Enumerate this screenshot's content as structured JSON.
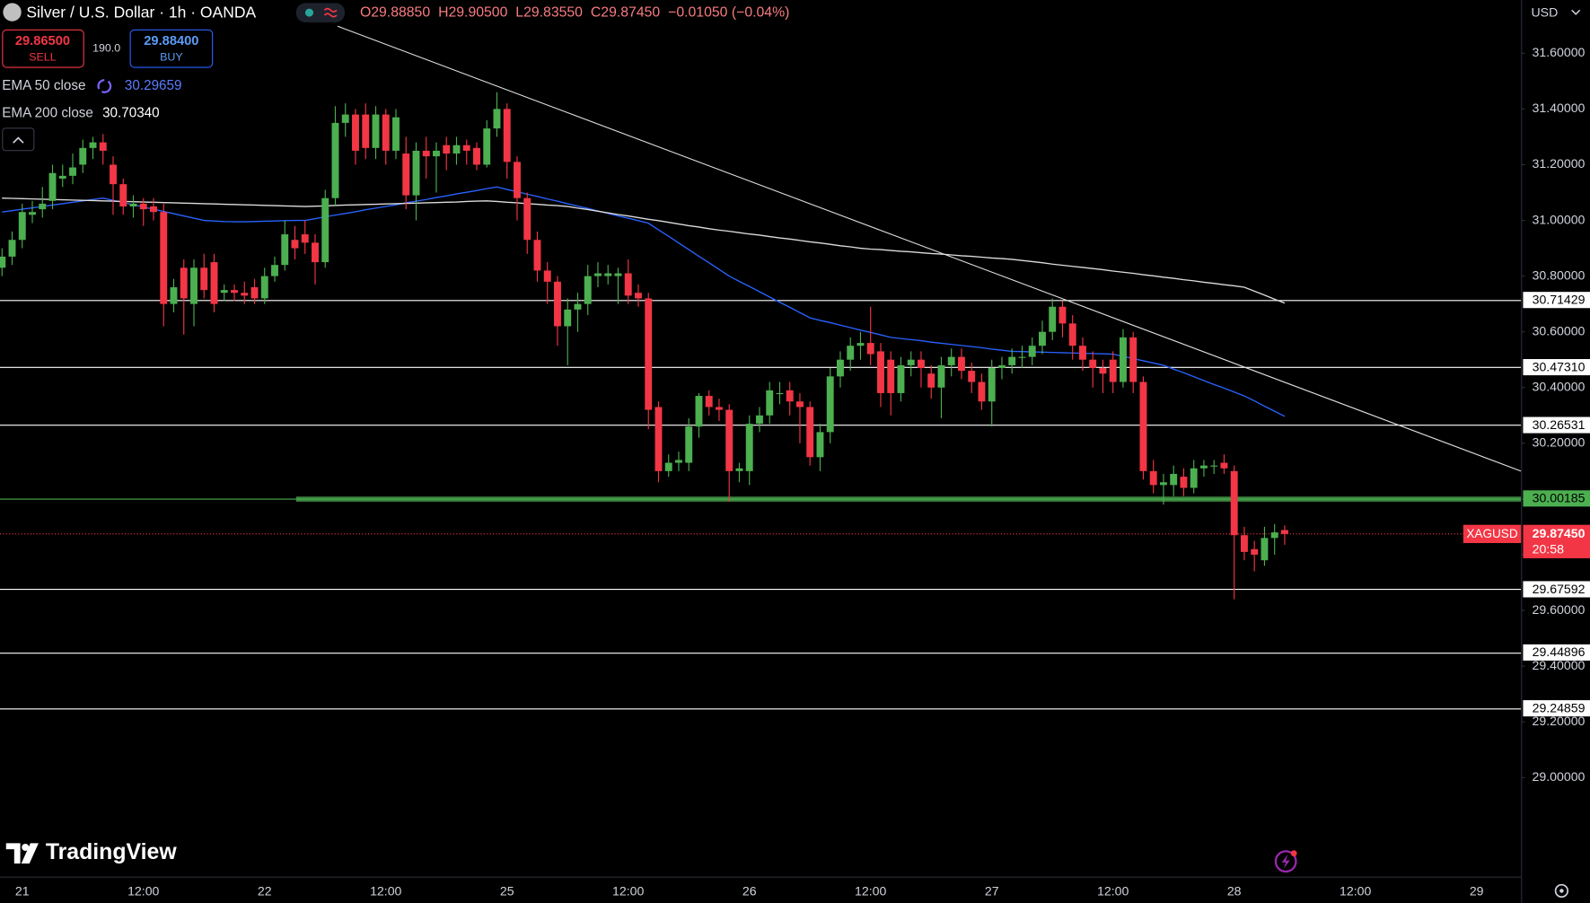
{
  "header": {
    "title": "Silver / U.S. Dollar · 1h · OANDA",
    "readout": [
      "O29.88850",
      "H29.90500",
      "L29.83550",
      "C29.87450",
      "−0.01050 (−0.04%)"
    ],
    "sell_price": "29.86500",
    "sell_label": "SELL",
    "spread": "190.0",
    "buy_price": "29.88400",
    "buy_label": "BUY",
    "ema50_value": "30.29659",
    "ema200_value": "30.70340",
    "currency": "USD",
    "logo": "TradingView"
  },
  "chart_data": {
    "type": "candlestick",
    "title": "Silver / U.S. Dollar · 1h · OANDA",
    "up_color": "#4caf50",
    "down_color": "#f23645",
    "categories": [
      null,
      null,
      "21",
      null,
      null,
      null,
      null,
      null,
      null,
      null,
      null,
      null,
      null,
      null,
      "12:00",
      null,
      null,
      null,
      null,
      null,
      null,
      null,
      null,
      null,
      null,
      null,
      "22",
      null,
      null,
      null,
      null,
      null,
      null,
      null,
      null,
      null,
      null,
      null,
      "12:00",
      null,
      null,
      null,
      null,
      null,
      null,
      null,
      null,
      null,
      null,
      null,
      "25",
      null,
      null,
      null,
      null,
      null,
      null,
      null,
      null,
      null,
      null,
      null,
      "12:00",
      null,
      null,
      null,
      null,
      null,
      null,
      null,
      null,
      null,
      null,
      null,
      "26",
      null,
      null,
      null,
      null,
      null,
      null,
      null,
      null,
      null,
      null,
      null,
      "12:00",
      null,
      null,
      null,
      null,
      null,
      null,
      null,
      null,
      null,
      null,
      null,
      "27",
      null,
      null,
      null,
      null,
      null,
      null,
      null,
      null,
      null,
      null,
      null,
      "12:00",
      null,
      null,
      null,
      null,
      null,
      null,
      null,
      null,
      null,
      null,
      null,
      "28",
      null,
      null,
      null,
      null,
      null,
      null,
      null,
      null,
      null,
      null,
      null,
      "12:00",
      null,
      null,
      null,
      null,
      null,
      null,
      null,
      null,
      null,
      null,
      null,
      "29",
      null,
      null,
      null
    ],
    "ohlc": [
      [
        30.83,
        30.9,
        30.8,
        30.87
      ],
      [
        30.87,
        30.96,
        30.84,
        30.93
      ],
      [
        30.93,
        31.06,
        30.9,
        31.03
      ],
      [
        31.02,
        31.07,
        30.99,
        31.03
      ],
      [
        31.04,
        31.12,
        31.01,
        31.06
      ],
      [
        31.07,
        31.2,
        31.04,
        31.17
      ],
      [
        31.15,
        31.2,
        31.12,
        31.16
      ],
      [
        31.16,
        31.24,
        31.13,
        31.19
      ],
      [
        31.2,
        31.29,
        31.17,
        31.26
      ],
      [
        31.26,
        31.3,
        31.22,
        31.28
      ],
      [
        31.28,
        31.31,
        31.2,
        31.25
      ],
      [
        31.2,
        31.23,
        31.02,
        31.13
      ],
      [
        31.13,
        31.15,
        31.02,
        31.05
      ],
      [
        31.05,
        31.09,
        31.01,
        31.06
      ],
      [
        31.06,
        31.08,
        30.98,
        31.04
      ],
      [
        31.05,
        31.08,
        31.0,
        31.03
      ],
      [
        31.03,
        31.06,
        30.62,
        30.7
      ],
      [
        30.7,
        30.79,
        30.67,
        30.76
      ],
      [
        30.83,
        30.86,
        30.59,
        30.72
      ],
      [
        30.7,
        30.86,
        30.62,
        30.83
      ],
      [
        30.83,
        30.88,
        30.72,
        30.75
      ],
      [
        30.85,
        30.88,
        30.67,
        30.7
      ],
      [
        30.74,
        30.77,
        30.71,
        30.75
      ],
      [
        30.75,
        30.77,
        30.71,
        30.74
      ],
      [
        30.74,
        30.78,
        30.7,
        30.73
      ],
      [
        30.76,
        30.79,
        30.7,
        30.72
      ],
      [
        30.72,
        30.83,
        30.7,
        30.8
      ],
      [
        30.8,
        30.87,
        30.78,
        30.84
      ],
      [
        30.84,
        31.0,
        30.82,
        30.95
      ],
      [
        30.93,
        30.98,
        30.86,
        30.9
      ],
      [
        30.95,
        31.0,
        30.88,
        30.92
      ],
      [
        30.92,
        30.95,
        30.77,
        30.85
      ],
      [
        30.85,
        31.11,
        30.83,
        31.08
      ],
      [
        31.08,
        31.41,
        31.05,
        31.35
      ],
      [
        31.35,
        31.42,
        31.3,
        31.38
      ],
      [
        31.38,
        31.4,
        31.2,
        31.25
      ],
      [
        31.38,
        31.42,
        31.22,
        31.26
      ],
      [
        31.26,
        31.41,
        31.22,
        31.38
      ],
      [
        31.38,
        31.4,
        31.2,
        31.25
      ],
      [
        31.25,
        31.4,
        31.22,
        31.37
      ],
      [
        31.24,
        31.3,
        31.04,
        31.09
      ],
      [
        31.09,
        31.28,
        31.0,
        31.25
      ],
      [
        31.25,
        31.3,
        31.15,
        31.23
      ],
      [
        31.23,
        31.28,
        31.1,
        31.25
      ],
      [
        31.27,
        31.3,
        31.18,
        31.24
      ],
      [
        31.24,
        31.3,
        31.2,
        31.27
      ],
      [
        31.27,
        31.29,
        31.2,
        31.25
      ],
      [
        31.26,
        31.28,
        31.18,
        31.2
      ],
      [
        31.2,
        31.36,
        31.19,
        31.33
      ],
      [
        31.33,
        31.46,
        31.3,
        31.4
      ],
      [
        31.4,
        31.42,
        31.15,
        31.21
      ],
      [
        31.21,
        31.23,
        31.0,
        31.08
      ],
      [
        31.08,
        31.1,
        30.88,
        30.93
      ],
      [
        30.93,
        30.96,
        30.78,
        30.82
      ],
      [
        30.82,
        30.85,
        30.7,
        30.78
      ],
      [
        30.78,
        30.8,
        30.55,
        30.62
      ],
      [
        30.62,
        30.72,
        30.48,
        30.68
      ],
      [
        30.68,
        30.74,
        30.6,
        30.7
      ],
      [
        30.7,
        30.84,
        30.66,
        30.8
      ],
      [
        30.8,
        30.85,
        30.76,
        30.81
      ],
      [
        30.8,
        30.84,
        30.77,
        30.81
      ],
      [
        30.8,
        30.83,
        30.7,
        30.81
      ],
      [
        30.81,
        30.86,
        30.7,
        30.73
      ],
      [
        30.74,
        30.77,
        30.69,
        30.72
      ],
      [
        30.72,
        30.74,
        30.25,
        30.32
      ],
      [
        30.33,
        30.35,
        30.06,
        30.1
      ],
      [
        30.1,
        30.16,
        30.08,
        30.13
      ],
      [
        30.13,
        30.17,
        30.1,
        30.14
      ],
      [
        30.13,
        30.29,
        30.1,
        30.26
      ],
      [
        30.26,
        30.38,
        30.22,
        30.37
      ],
      [
        30.37,
        30.39,
        30.3,
        30.33
      ],
      [
        30.33,
        30.36,
        30.28,
        30.32
      ],
      [
        30.32,
        30.34,
        29.99,
        30.1
      ],
      [
        30.1,
        30.13,
        30.06,
        30.11
      ],
      [
        30.1,
        30.3,
        30.05,
        30.27
      ],
      [
        30.27,
        30.33,
        30.24,
        30.3
      ],
      [
        30.3,
        30.42,
        30.27,
        30.39
      ],
      [
        30.38,
        30.42,
        30.34,
        30.38
      ],
      [
        30.39,
        30.42,
        30.3,
        30.35
      ],
      [
        30.35,
        30.38,
        30.2,
        30.33
      ],
      [
        30.33,
        30.35,
        30.12,
        30.15
      ],
      [
        30.15,
        30.27,
        30.1,
        30.24
      ],
      [
        30.24,
        30.47,
        30.2,
        30.44
      ],
      [
        30.44,
        30.53,
        30.4,
        30.5
      ],
      [
        30.5,
        30.58,
        30.46,
        30.55
      ],
      [
        30.55,
        30.6,
        30.5,
        30.56
      ],
      [
        30.56,
        30.69,
        30.48,
        30.52
      ],
      [
        30.53,
        30.56,
        30.33,
        30.38
      ],
      [
        30.5,
        30.53,
        30.3,
        30.38
      ],
      [
        30.38,
        30.51,
        30.35,
        30.48
      ],
      [
        30.48,
        30.53,
        30.44,
        30.5
      ],
      [
        30.5,
        30.53,
        30.4,
        30.47
      ],
      [
        30.45,
        30.48,
        30.36,
        30.4
      ],
      [
        30.4,
        30.51,
        30.29,
        30.48
      ],
      [
        30.48,
        30.54,
        30.44,
        30.51
      ],
      [
        30.51,
        30.54,
        30.43,
        30.46
      ],
      [
        30.46,
        30.49,
        30.38,
        30.42
      ],
      [
        30.42,
        30.45,
        30.32,
        30.35
      ],
      [
        30.35,
        30.5,
        30.26,
        30.47
      ],
      [
        30.47,
        30.51,
        30.43,
        30.48
      ],
      [
        30.48,
        30.54,
        30.45,
        30.51
      ],
      [
        30.51,
        30.55,
        30.47,
        30.51
      ],
      [
        30.51,
        30.58,
        30.48,
        30.55
      ],
      [
        30.55,
        30.64,
        30.52,
        30.6
      ],
      [
        30.6,
        30.72,
        30.57,
        30.69
      ],
      [
        30.69,
        30.71,
        30.58,
        30.63
      ],
      [
        30.63,
        30.66,
        30.5,
        30.55
      ],
      [
        30.55,
        30.58,
        30.46,
        30.5
      ],
      [
        30.5,
        30.53,
        30.4,
        30.47
      ],
      [
        30.47,
        30.5,
        30.38,
        30.45
      ],
      [
        30.5,
        30.53,
        30.38,
        30.42
      ],
      [
        30.42,
        30.61,
        30.4,
        30.58
      ],
      [
        30.58,
        30.6,
        30.38,
        30.42
      ],
      [
        30.42,
        30.44,
        30.07,
        30.1
      ],
      [
        30.1,
        30.14,
        30.02,
        30.05
      ],
      [
        30.05,
        30.09,
        29.98,
        30.06
      ],
      [
        30.05,
        30.12,
        30.01,
        30.09
      ],
      [
        30.08,
        30.11,
        30.01,
        30.04
      ],
      [
        30.04,
        30.14,
        30.02,
        30.11
      ],
      [
        30.11,
        30.14,
        30.08,
        30.12
      ],
      [
        30.12,
        30.14,
        30.09,
        30.12
      ],
      [
        30.13,
        30.16,
        30.09,
        30.11
      ],
      [
        30.1,
        30.12,
        29.64,
        29.87
      ],
      [
        29.87,
        29.9,
        29.78,
        29.81
      ],
      [
        29.82,
        29.85,
        29.74,
        29.8
      ],
      [
        29.78,
        29.9,
        29.76,
        29.86
      ],
      [
        29.86,
        29.91,
        29.8,
        29.88
      ],
      [
        29.8885,
        29.905,
        29.8355,
        29.8745
      ],
      null,
      null,
      null,
      null,
      null,
      null,
      null,
      null,
      null,
      null,
      null,
      null,
      null,
      null,
      null,
      null,
      null,
      null,
      null,
      null,
      null,
      null
    ],
    "series": [
      {
        "name": "EMA 50 close",
        "color": "#2962ff",
        "values": [
          31.03,
          31.035,
          31.04,
          31.045,
          31.05,
          31.055,
          31.06,
          31.065,
          31.07,
          31.075,
          31.08,
          31.072,
          31.064,
          31.056,
          31.048,
          31.04,
          31.032,
          31.024,
          31.016,
          31.008,
          31.0,
          30.998,
          30.996,
          30.995,
          30.995,
          30.996,
          30.997,
          30.998,
          30.999,
          31.0,
          31.0,
          31.006,
          31.013,
          31.019,
          31.025,
          31.031,
          31.038,
          31.044,
          31.05,
          31.056,
          31.063,
          31.069,
          31.075,
          31.082,
          31.088,
          31.095,
          31.101,
          31.107,
          31.114,
          31.12,
          31.111,
          31.103,
          31.094,
          31.086,
          31.077,
          31.069,
          31.06,
          31.051,
          31.043,
          31.034,
          31.025,
          31.016,
          31.008,
          30.999,
          30.99,
          30.966,
          30.943,
          30.919,
          30.895,
          30.871,
          30.848,
          30.824,
          30.8,
          30.781,
          30.763,
          30.744,
          30.725,
          30.706,
          30.688,
          30.669,
          30.65,
          30.641,
          30.633,
          30.624,
          30.615,
          30.606,
          30.598,
          30.589,
          30.58,
          30.576,
          30.572,
          30.568,
          30.563,
          30.559,
          30.555,
          30.551,
          30.547,
          30.543,
          30.538,
          30.534,
          30.53,
          30.529,
          30.528,
          30.527,
          30.526,
          30.525,
          30.524,
          30.523,
          30.522,
          30.521,
          30.52,
          30.512,
          30.504,
          30.496,
          30.488,
          30.48,
          30.466,
          30.453,
          30.439,
          30.425,
          30.411,
          30.398,
          30.384,
          30.37,
          30.352,
          30.333,
          30.315,
          30.29659,
          null,
          null,
          null,
          null,
          null,
          null,
          null,
          null,
          null,
          null,
          null,
          null,
          null,
          null,
          null,
          null,
          null,
          null,
          null,
          null,
          null,
          null
        ]
      },
      {
        "name": "EMA 200 close",
        "color": "#dcdcdc",
        "values": [
          31.08,
          31.079,
          31.078,
          31.077,
          31.076,
          31.075,
          31.074,
          31.073,
          31.072,
          31.071,
          31.07,
          31.069,
          31.068,
          31.067,
          31.066,
          31.065,
          31.064,
          31.063,
          31.062,
          31.061,
          31.06,
          31.059,
          31.058,
          31.057,
          31.056,
          31.055,
          31.054,
          31.053,
          31.052,
          31.051,
          31.05,
          31.051,
          31.052,
          31.054,
          31.055,
          31.056,
          31.057,
          31.058,
          31.059,
          31.06,
          31.061,
          31.062,
          31.063,
          31.064,
          31.065,
          31.066,
          31.068,
          31.069,
          31.07,
          31.068,
          31.065,
          31.063,
          31.06,
          31.058,
          31.055,
          31.053,
          31.05,
          31.044,
          31.039,
          31.033,
          31.027,
          31.021,
          31.016,
          31.01,
          31.004,
          30.999,
          30.993,
          30.987,
          30.981,
          30.976,
          30.97,
          30.965,
          30.961,
          30.956,
          30.951,
          30.947,
          30.942,
          30.937,
          30.933,
          30.928,
          30.923,
          30.919,
          30.914,
          30.909,
          30.905,
          30.9,
          30.897,
          30.895,
          30.892,
          30.889,
          30.887,
          30.884,
          30.881,
          30.879,
          30.876,
          30.873,
          30.871,
          30.868,
          30.865,
          30.863,
          30.86,
          30.856,
          30.852,
          30.848,
          30.843,
          30.839,
          30.835,
          30.831,
          30.827,
          30.823,
          30.818,
          30.814,
          30.81,
          30.805,
          30.801,
          30.796,
          30.792,
          30.787,
          30.783,
          30.778,
          30.774,
          30.769,
          30.765,
          30.76,
          30.746,
          30.732,
          30.717,
          30.7034,
          null,
          null,
          null,
          null,
          null,
          null,
          null,
          null,
          null,
          null,
          null,
          null,
          null,
          null,
          null,
          null,
          null,
          null,
          null,
          null,
          null,
          null
        ]
      }
    ],
    "ylim": [
      28.6443,
      31.7911
    ],
    "yticks": [
      {
        "value": 31.6,
        "label": "31.60000"
      },
      {
        "value": 31.4,
        "label": "31.40000"
      },
      {
        "value": 31.2,
        "label": "31.20000"
      },
      {
        "value": 31.0,
        "label": "31.00000"
      },
      {
        "value": 30.8,
        "label": "30.80000"
      },
      {
        "value": 30.6,
        "label": "30.60000"
      },
      {
        "value": 30.4,
        "label": "30.40000"
      },
      {
        "value": 30.2,
        "label": "30.20000"
      },
      {
        "value": 30.0,
        "label": "30.00000"
      },
      {
        "value": 29.8,
        "label": "29.80000"
      },
      {
        "value": 29.6,
        "label": "29.60000"
      },
      {
        "value": 29.4,
        "label": "29.40000"
      },
      {
        "value": 29.2,
        "label": "29.20000"
      },
      {
        "value": 29.0,
        "label": "29.00000"
      }
    ],
    "levels": [
      {
        "value": 30.71429,
        "color": "#ffffff"
      },
      {
        "value": 30.4731,
        "label": "30.47310",
        "color": "#ffffff"
      },
      {
        "value": 30.26531,
        "color": "#ffffff"
      },
      {
        "value": 30.00185,
        "color": "#4caf50"
      },
      {
        "value": 29.67592,
        "color": "#ffffff"
      },
      {
        "value": 29.44896,
        "color": "#ffffff"
      },
      {
        "value": 29.24859,
        "color": "#ffffff"
      }
    ],
    "trendline": {
      "start": 31.697,
      "end": 30.1,
      "color": "#e0e0e0"
    },
    "last_price": {
      "symbol": "XAGUSD",
      "value": 29.8745,
      "label": "29.87450",
      "countdown": "20:58",
      "color": "#f23645"
    }
  }
}
